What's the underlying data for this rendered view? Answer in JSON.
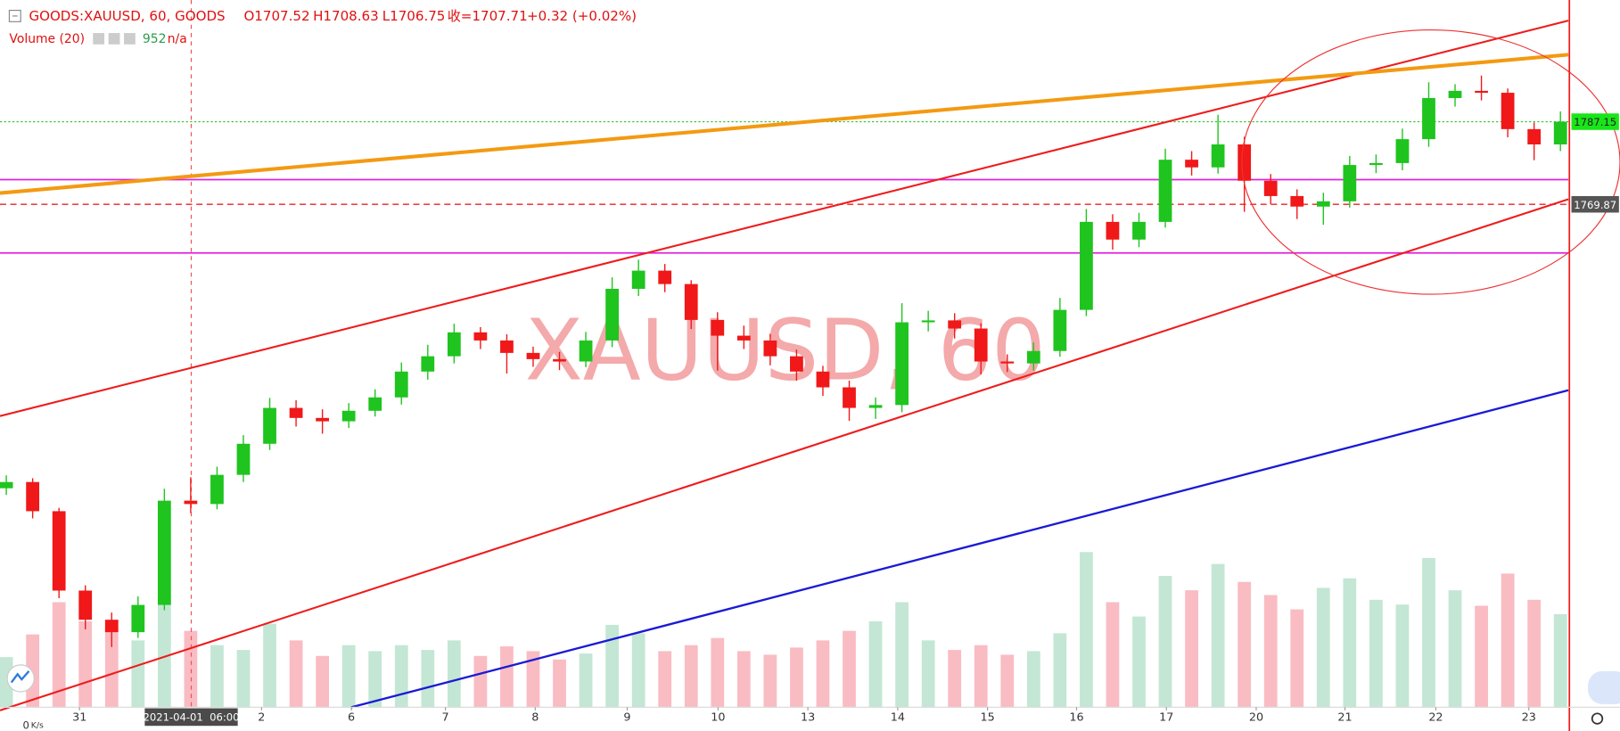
{
  "header": {
    "symbol": "GOODS:XAUUSD, 60, GOODS",
    "open": "O1707.52",
    "high": "H1708.63",
    "low": "L1706.75",
    "close": "收=1707.71",
    "change": "+0.32 (+0.02%)",
    "volume_name": "Volume (20)",
    "volume_value": "952",
    "volume_ma": "n/a"
  },
  "chart_data": {
    "type": "candlestick",
    "watermark": "XAUUSD, 60",
    "up_color": "#1fc41f",
    "down_color": "#f01818",
    "candles": [
      [
        1710.5,
        1713.2,
        1709.1,
        1711.8
      ],
      [
        1711.8,
        1712.6,
        1704.2,
        1705.7
      ],
      [
        1705.7,
        1706.4,
        1687.5,
        1689.1
      ],
      [
        1689.1,
        1690.2,
        1681.0,
        1683.0
      ],
      [
        1683.0,
        1684.5,
        1677.3,
        1680.4
      ],
      [
        1680.4,
        1687.9,
        1679.2,
        1686.1
      ],
      [
        1686.1,
        1710.4,
        1685.0,
        1707.9
      ],
      [
        1707.9,
        1712.8,
        1705.3,
        1707.2
      ],
      [
        1707.2,
        1715.0,
        1706.1,
        1713.3
      ],
      [
        1713.3,
        1721.6,
        1711.8,
        1719.8
      ],
      [
        1719.8,
        1729.4,
        1718.5,
        1727.3
      ],
      [
        1727.3,
        1728.9,
        1723.4,
        1725.2
      ],
      [
        1725.2,
        1727.0,
        1721.9,
        1724.5
      ],
      [
        1724.5,
        1728.3,
        1723.1,
        1726.7
      ],
      [
        1726.7,
        1731.2,
        1725.5,
        1729.5
      ],
      [
        1729.5,
        1736.8,
        1728.0,
        1734.9
      ],
      [
        1734.9,
        1740.5,
        1733.2,
        1738.1
      ],
      [
        1738.1,
        1744.9,
        1736.6,
        1743.1
      ],
      [
        1743.1,
        1744.2,
        1739.6,
        1741.4
      ],
      [
        1741.4,
        1742.7,
        1734.5,
        1738.8
      ],
      [
        1738.8,
        1740.1,
        1735.9,
        1737.5
      ],
      [
        1737.5,
        1739.0,
        1735.2,
        1737.0
      ],
      [
        1737.0,
        1743.2,
        1735.8,
        1741.4
      ],
      [
        1741.4,
        1754.6,
        1740.0,
        1752.2
      ],
      [
        1752.2,
        1758.3,
        1750.7,
        1756.0
      ],
      [
        1756.0,
        1757.4,
        1751.5,
        1753.2
      ],
      [
        1753.2,
        1754.0,
        1743.8,
        1745.7
      ],
      [
        1745.7,
        1747.3,
        1735.1,
        1742.4
      ],
      [
        1742.4,
        1744.5,
        1739.6,
        1741.4
      ],
      [
        1741.4,
        1742.8,
        1736.2,
        1738.1
      ],
      [
        1738.1,
        1739.5,
        1733.0,
        1734.9
      ],
      [
        1734.9,
        1736.1,
        1729.8,
        1731.6
      ],
      [
        1731.6,
        1733.0,
        1724.6,
        1727.3
      ],
      [
        1727.3,
        1729.5,
        1725.0,
        1727.9
      ],
      [
        1727.9,
        1749.2,
        1726.4,
        1745.2
      ],
      [
        1745.2,
        1747.6,
        1743.3,
        1745.6
      ],
      [
        1745.6,
        1747.1,
        1741.8,
        1743.9
      ],
      [
        1743.9,
        1745.0,
        1734.3,
        1737.0
      ],
      [
        1737.0,
        1738.5,
        1734.8,
        1736.6
      ],
      [
        1736.6,
        1741.0,
        1735.1,
        1739.2
      ],
      [
        1739.2,
        1750.3,
        1738.0,
        1747.8
      ],
      [
        1747.8,
        1768.9,
        1746.5,
        1766.2
      ],
      [
        1766.2,
        1767.8,
        1760.4,
        1762.5
      ],
      [
        1762.5,
        1768.1,
        1760.9,
        1766.2
      ],
      [
        1766.2,
        1781.5,
        1765.0,
        1779.2
      ],
      [
        1779.2,
        1781.0,
        1775.9,
        1777.6
      ],
      [
        1777.6,
        1788.6,
        1776.3,
        1782.4
      ],
      [
        1782.4,
        1784.0,
        1768.3,
        1774.8
      ],
      [
        1774.8,
        1776.2,
        1769.9,
        1771.6
      ],
      [
        1771.6,
        1773.0,
        1766.8,
        1769.4
      ],
      [
        1769.4,
        1772.3,
        1765.6,
        1770.5
      ],
      [
        1770.5,
        1780.0,
        1769.2,
        1778.1
      ],
      [
        1778.1,
        1780.3,
        1776.4,
        1778.5
      ],
      [
        1778.5,
        1785.7,
        1777.0,
        1783.5
      ],
      [
        1783.5,
        1795.4,
        1781.9,
        1792.1
      ],
      [
        1792.1,
        1795.0,
        1790.3,
        1793.6
      ],
      [
        1793.6,
        1796.8,
        1791.6,
        1793.2
      ],
      [
        1793.2,
        1794.1,
        1783.9,
        1785.6
      ],
      [
        1785.6,
        1787.0,
        1779.1,
        1782.4
      ],
      [
        1782.4,
        1789.3,
        1781.0,
        1787.15
      ]
    ],
    "volumes": [
      420,
      610,
      880,
      720,
      650,
      560,
      900,
      640,
      520,
      480,
      700,
      560,
      430,
      520,
      470,
      520,
      480,
      560,
      430,
      510,
      470,
      400,
      450,
      690,
      620,
      470,
      520,
      580,
      470,
      440,
      500,
      560,
      640,
      720,
      880,
      560,
      480,
      520,
      440,
      470,
      620,
      1300,
      880,
      760,
      1100,
      980,
      1200,
      1050,
      940,
      820,
      1000,
      1080,
      900,
      860,
      1250,
      980,
      850,
      1120,
      900,
      780
    ],
    "ylim": [
      1664.7,
      1812.6
    ],
    "xlim": [
      -0.24,
      59.3
    ],
    "volume_ylim": [
      0,
      1600
    ],
    "price_lines": [
      1787.15,
      1769.87
    ],
    "crosshair": {
      "value": 7.02,
      "label": "2021-04-01  06:00"
    },
    "xticks": [
      {
        "value": 2.78,
        "label": "31"
      },
      {
        "value": 9.69,
        "label": "2"
      },
      {
        "value": 13.1,
        "label": "6"
      },
      {
        "value": 16.67,
        "label": "7"
      },
      {
        "value": 20.08,
        "label": "8"
      },
      {
        "value": 23.57,
        "label": "9"
      },
      {
        "value": 27.02,
        "label": "10"
      },
      {
        "value": 30.43,
        "label": "13"
      },
      {
        "value": 33.84,
        "label": "14"
      },
      {
        "value": 37.25,
        "label": "15"
      },
      {
        "value": 40.63,
        "label": "16"
      },
      {
        "value": 44.04,
        "label": "17"
      },
      {
        "value": 47.45,
        "label": "20"
      },
      {
        "value": 50.82,
        "label": "21"
      },
      {
        "value": 54.27,
        "label": "22"
      },
      {
        "value": 57.8,
        "label": "23"
      }
    ]
  },
  "status": {
    "speed": "0",
    "unit": "K/s"
  }
}
